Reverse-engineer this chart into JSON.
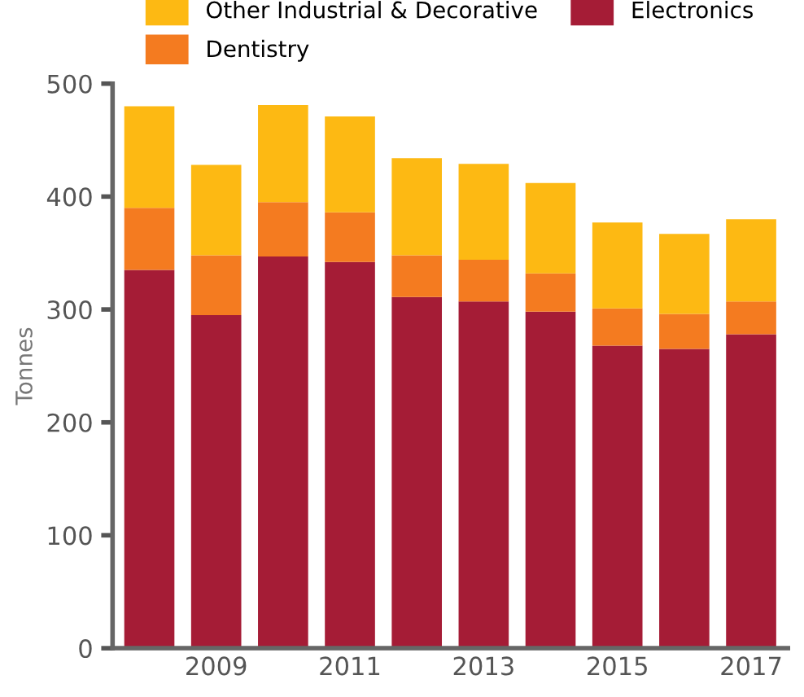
{
  "chart_data": {
    "type": "bar",
    "stacked": true,
    "ylabel": "Tonnes",
    "categories": [
      null,
      "2009",
      null,
      "2011",
      null,
      "2013",
      null,
      "2015",
      null,
      "2017"
    ],
    "series": [
      {
        "name": "Electronics",
        "color": "#a51c36",
        "values": [
          335,
          295,
          347,
          342,
          311,
          307,
          298,
          268,
          265,
          278
        ]
      },
      {
        "name": "Dentistry",
        "color": "#f47b20",
        "values": [
          55,
          53,
          48,
          44,
          37,
          37,
          34,
          33,
          31,
          29
        ]
      },
      {
        "name": "Other Industrial & Decorative",
        "color": "#fdb913",
        "values": [
          90,
          80,
          86,
          85,
          86,
          85,
          80,
          76,
          71,
          73
        ]
      }
    ],
    "ylim": [
      0,
      500
    ],
    "yticks": [
      0,
      100,
      200,
      300,
      400,
      500
    ],
    "grid": false,
    "legend": "top"
  }
}
